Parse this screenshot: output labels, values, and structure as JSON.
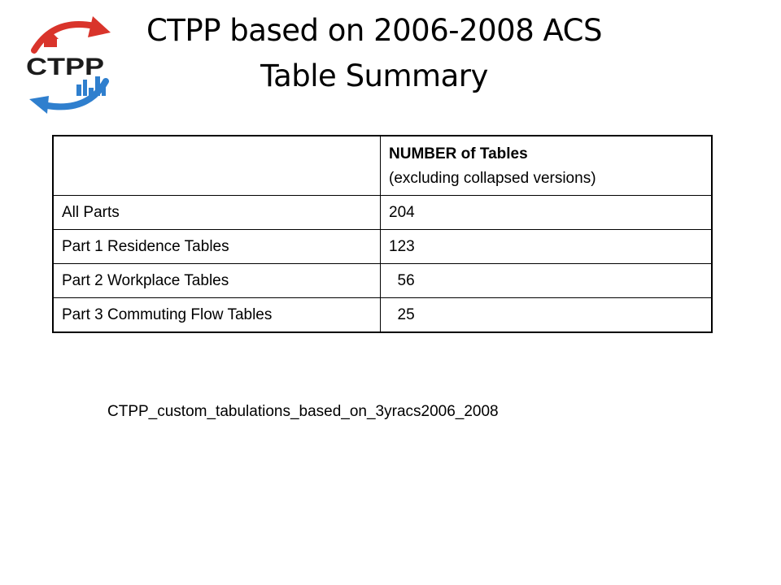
{
  "logo": {
    "text": "CTPP",
    "colors": {
      "red": "#d9342b",
      "blue": "#2f7fce",
      "dark": "#1c1c1c"
    }
  },
  "title": {
    "line1": "CTPP based on 2006-2008 ACS",
    "line2": "Table Summary"
  },
  "table": {
    "header": {
      "col1": "",
      "col2_bold": "NUMBER of Tables",
      "col2_sub": "(excluding collapsed versions)"
    },
    "rows": [
      {
        "label": "All Parts",
        "value": "204"
      },
      {
        "label": "Part 1 Residence Tables",
        "value": "123"
      },
      {
        "label": "Part 2 Workplace Tables",
        "value": "  56"
      },
      {
        "label": "Part 3 Commuting Flow Tables",
        "value": "  25"
      }
    ]
  },
  "filename": "CTPP_custom_tabulations_based_on_3yracs2006_2008"
}
